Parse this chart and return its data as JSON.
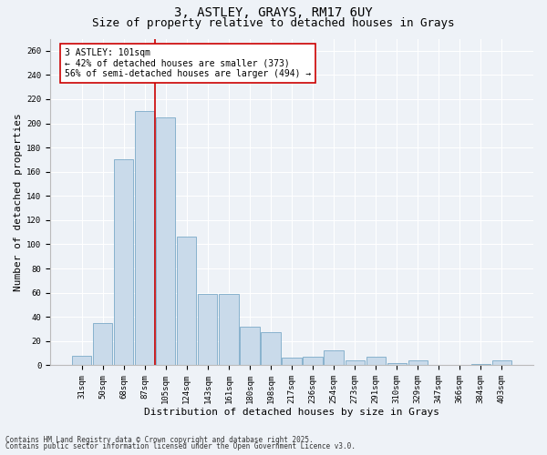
{
  "title1": "3, ASTLEY, GRAYS, RM17 6UY",
  "title2": "Size of property relative to detached houses in Grays",
  "xlabel": "Distribution of detached houses by size in Grays",
  "ylabel": "Number of detached properties",
  "categories": [
    "31sqm",
    "50sqm",
    "68sqm",
    "87sqm",
    "105sqm",
    "124sqm",
    "143sqm",
    "161sqm",
    "180sqm",
    "198sqm",
    "217sqm",
    "236sqm",
    "254sqm",
    "273sqm",
    "291sqm",
    "310sqm",
    "329sqm",
    "347sqm",
    "366sqm",
    "384sqm",
    "403sqm"
  ],
  "values": [
    8,
    35,
    170,
    210,
    205,
    106,
    59,
    59,
    32,
    27,
    6,
    7,
    12,
    4,
    7,
    2,
    4,
    0,
    0,
    1,
    4
  ],
  "bar_color": "#c9daea",
  "bar_edge_color": "#7baac8",
  "red_line_index": 3,
  "annotation_line1": "3 ASTLEY: 101sqm",
  "annotation_line2": "← 42% of detached houses are smaller (373)",
  "annotation_line3": "56% of semi-detached houses are larger (494) →",
  "annotation_box_color": "#ffffff",
  "annotation_box_edge": "#cc0000",
  "red_line_color": "#cc0000",
  "ylim": [
    0,
    270
  ],
  "yticks": [
    0,
    20,
    40,
    60,
    80,
    100,
    120,
    140,
    160,
    180,
    200,
    220,
    240,
    260
  ],
  "footnote1": "Contains HM Land Registry data © Crown copyright and database right 2025.",
  "footnote2": "Contains public sector information licensed under the Open Government Licence v3.0.",
  "bg_color": "#eef2f7",
  "plot_bg_color": "#eef2f7",
  "grid_color": "#ffffff",
  "title1_fontsize": 10,
  "title2_fontsize": 9,
  "xlabel_fontsize": 8,
  "ylabel_fontsize": 8,
  "tick_fontsize": 6.5,
  "annot_fontsize": 7,
  "footnote_fontsize": 5.5
}
